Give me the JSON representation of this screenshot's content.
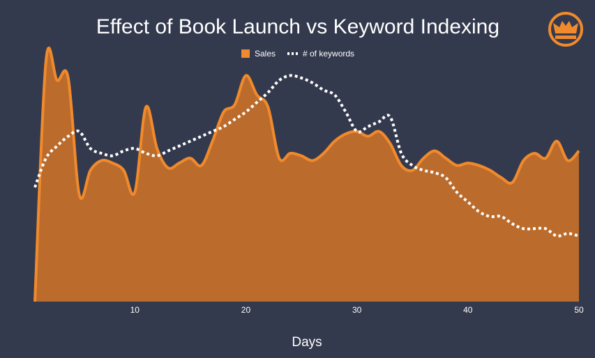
{
  "chart_data": {
    "type": "area",
    "title": "Effect of Book Launch vs Keyword Indexing",
    "xlabel": "Days",
    "ylabel": "",
    "x_ticks": [
      10,
      20,
      30,
      40,
      50
    ],
    "xlim": [
      1,
      50
    ],
    "ylim": [
      0,
      100
    ],
    "grid": false,
    "legend_position": "top-center",
    "x": [
      1,
      2,
      3,
      4,
      5,
      6,
      7,
      8,
      9,
      10,
      11,
      12,
      13,
      14,
      15,
      16,
      17,
      18,
      19,
      20,
      21,
      22,
      23,
      24,
      25,
      26,
      27,
      28,
      29,
      30,
      31,
      32,
      33,
      34,
      35,
      36,
      37,
      38,
      39,
      40,
      41,
      42,
      43,
      44,
      45,
      46,
      47,
      48,
      49,
      50
    ],
    "series": [
      {
        "name": "Sales",
        "style": "filled-area",
        "color": "#f08a2c",
        "fill": "#bb6c2c",
        "values": [
          0,
          99,
          91,
          92,
          44,
          54,
          58,
          57,
          54,
          45,
          80,
          63,
          55,
          57,
          59,
          56,
          66,
          78,
          81,
          93,
          85,
          80,
          59,
          61,
          60,
          58,
          61,
          66,
          69,
          70,
          68,
          70,
          65,
          56,
          54,
          59,
          62,
          59,
          56,
          57,
          56,
          54,
          51,
          49,
          58,
          61,
          59,
          66,
          58,
          62
        ]
      },
      {
        "name": "# of keywords",
        "style": "dotted-line",
        "color": "#ffffff",
        "values": [
          47,
          59,
          64,
          68,
          70,
          63,
          61,
          60,
          62,
          63,
          61,
          60,
          62,
          64,
          66,
          68,
          70,
          72,
          75,
          78,
          82,
          86,
          91,
          93,
          92,
          90,
          87,
          85,
          78,
          70,
          72,
          74,
          76,
          61,
          56,
          54,
          53,
          51,
          45,
          41,
          37,
          35,
          35,
          32,
          30,
          30,
          30,
          27,
          28,
          27
        ]
      }
    ]
  },
  "logo": {
    "name": "crown-logo",
    "color": "#f08a2c"
  }
}
